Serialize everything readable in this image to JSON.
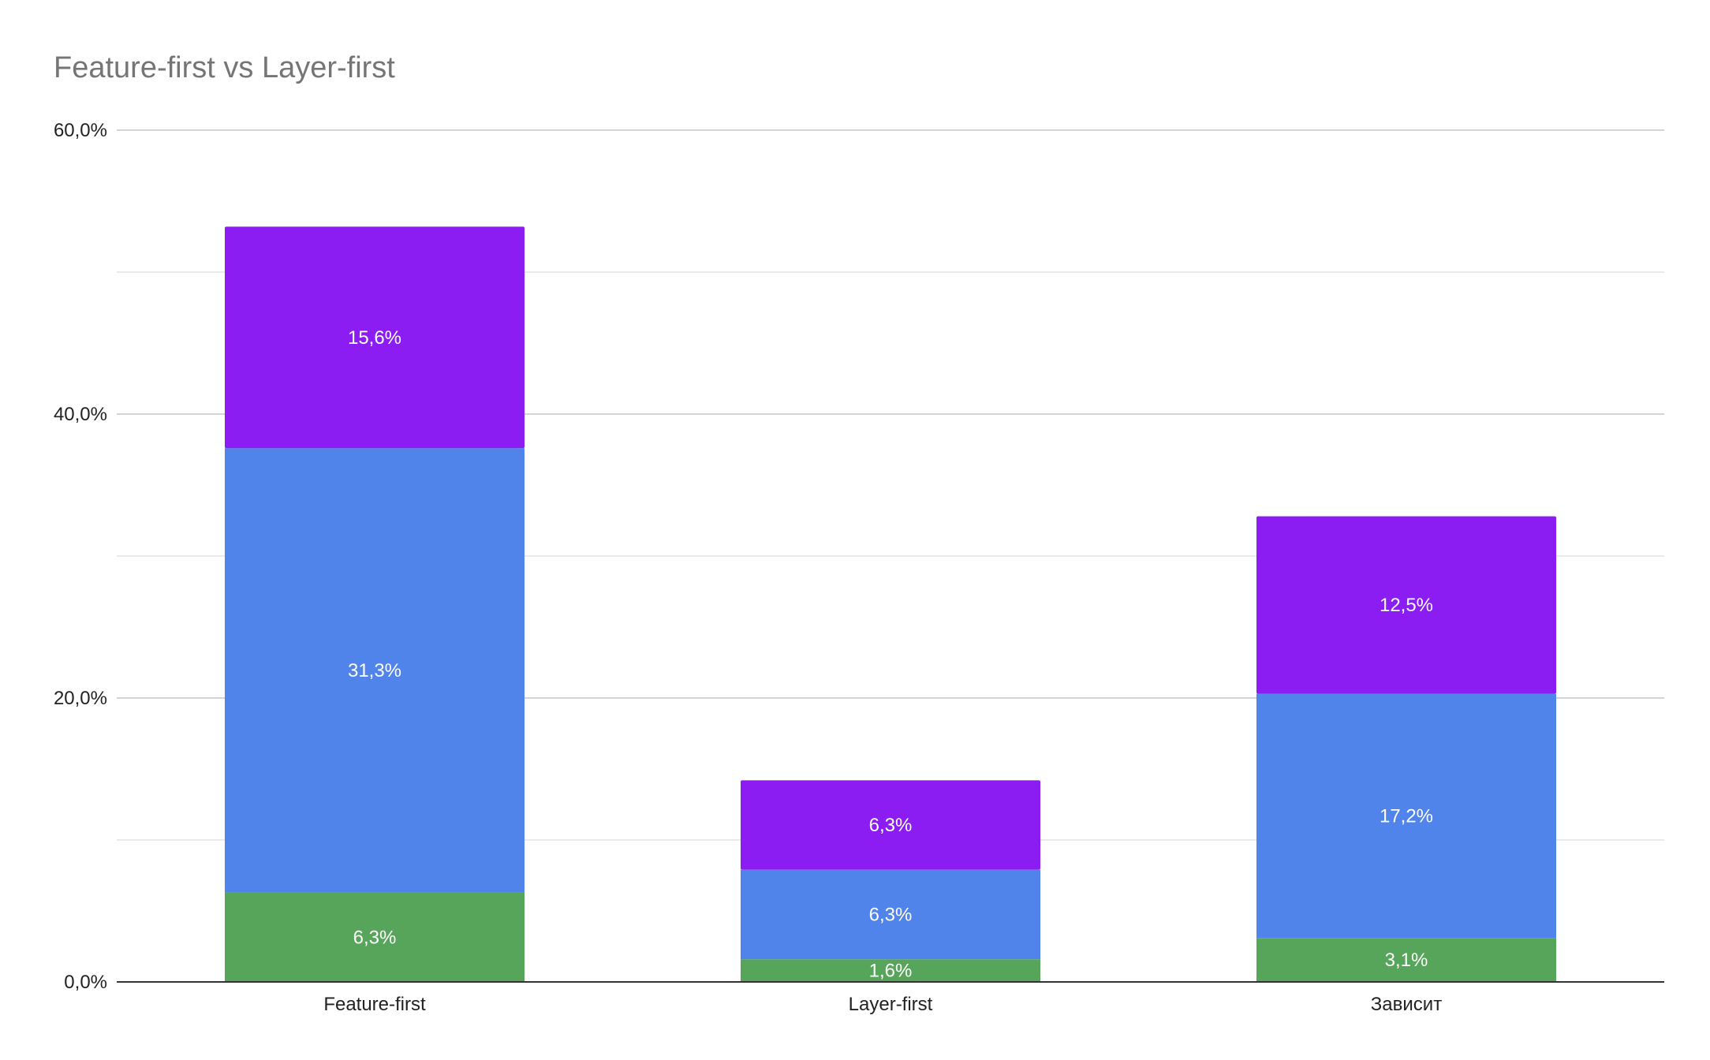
{
  "chart_data": {
    "type": "bar",
    "stacked": true,
    "title": "Feature-first vs Layer-first",
    "xlabel": "",
    "ylabel": "",
    "ylim": [
      0,
      60
    ],
    "y_ticks": [
      "0,0%",
      "20,0%",
      "40,0%",
      "60,0%"
    ],
    "y_tick_values": [
      0,
      20,
      40,
      60
    ],
    "y_minor_gridlines": [
      10,
      30,
      50
    ],
    "grid": true,
    "legend": "none",
    "categories": [
      "Feature-first",
      "Layer-first",
      "Зависит"
    ],
    "series": [
      {
        "color": "#57a55a",
        "values": [
          6.3,
          1.6,
          3.1
        ],
        "labels": [
          "6,3%",
          "1,6%",
          "3,1%"
        ]
      },
      {
        "color": "#5184ea",
        "values": [
          31.3,
          6.3,
          17.2
        ],
        "labels": [
          "31,3%",
          "6,3%",
          "17,2%"
        ]
      },
      {
        "color": "#8b1cf2",
        "values": [
          15.6,
          6.3,
          12.5
        ],
        "labels": [
          "15,6%",
          "6,3%",
          "12,5%"
        ]
      }
    ]
  }
}
